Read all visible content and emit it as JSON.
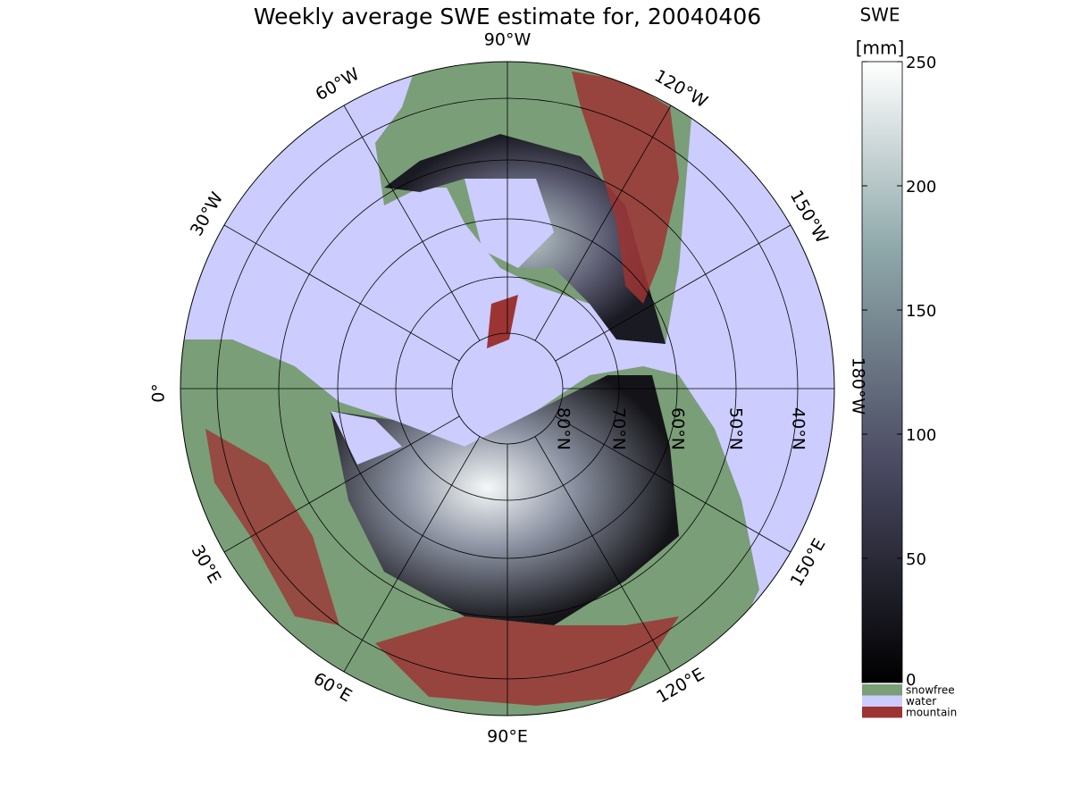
{
  "title": "Weekly average SWE estimate for, 20040406",
  "map": {
    "longitude_labels": [
      "90°W",
      "120°W",
      "150°W",
      "180°W",
      "150°E",
      "120°E",
      "90°E",
      "60°E",
      "30°E",
      "0°",
      "30°W",
      "60°W"
    ],
    "latitude_labels": [
      "80°N",
      "70°N",
      "60°N",
      "50°N",
      "40°N"
    ]
  },
  "colorbar": {
    "title": "SWE",
    "unit": "[mm]",
    "lim": [
      0,
      250
    ],
    "ticks": [
      0,
      50,
      100,
      150,
      200,
      250
    ]
  },
  "legend": [
    {
      "label": "snowfree",
      "color": "#7a9e78"
    },
    {
      "label": "water",
      "color": "#ccccff"
    },
    {
      "label": "mountain",
      "color": "#9c3434"
    }
  ]
}
